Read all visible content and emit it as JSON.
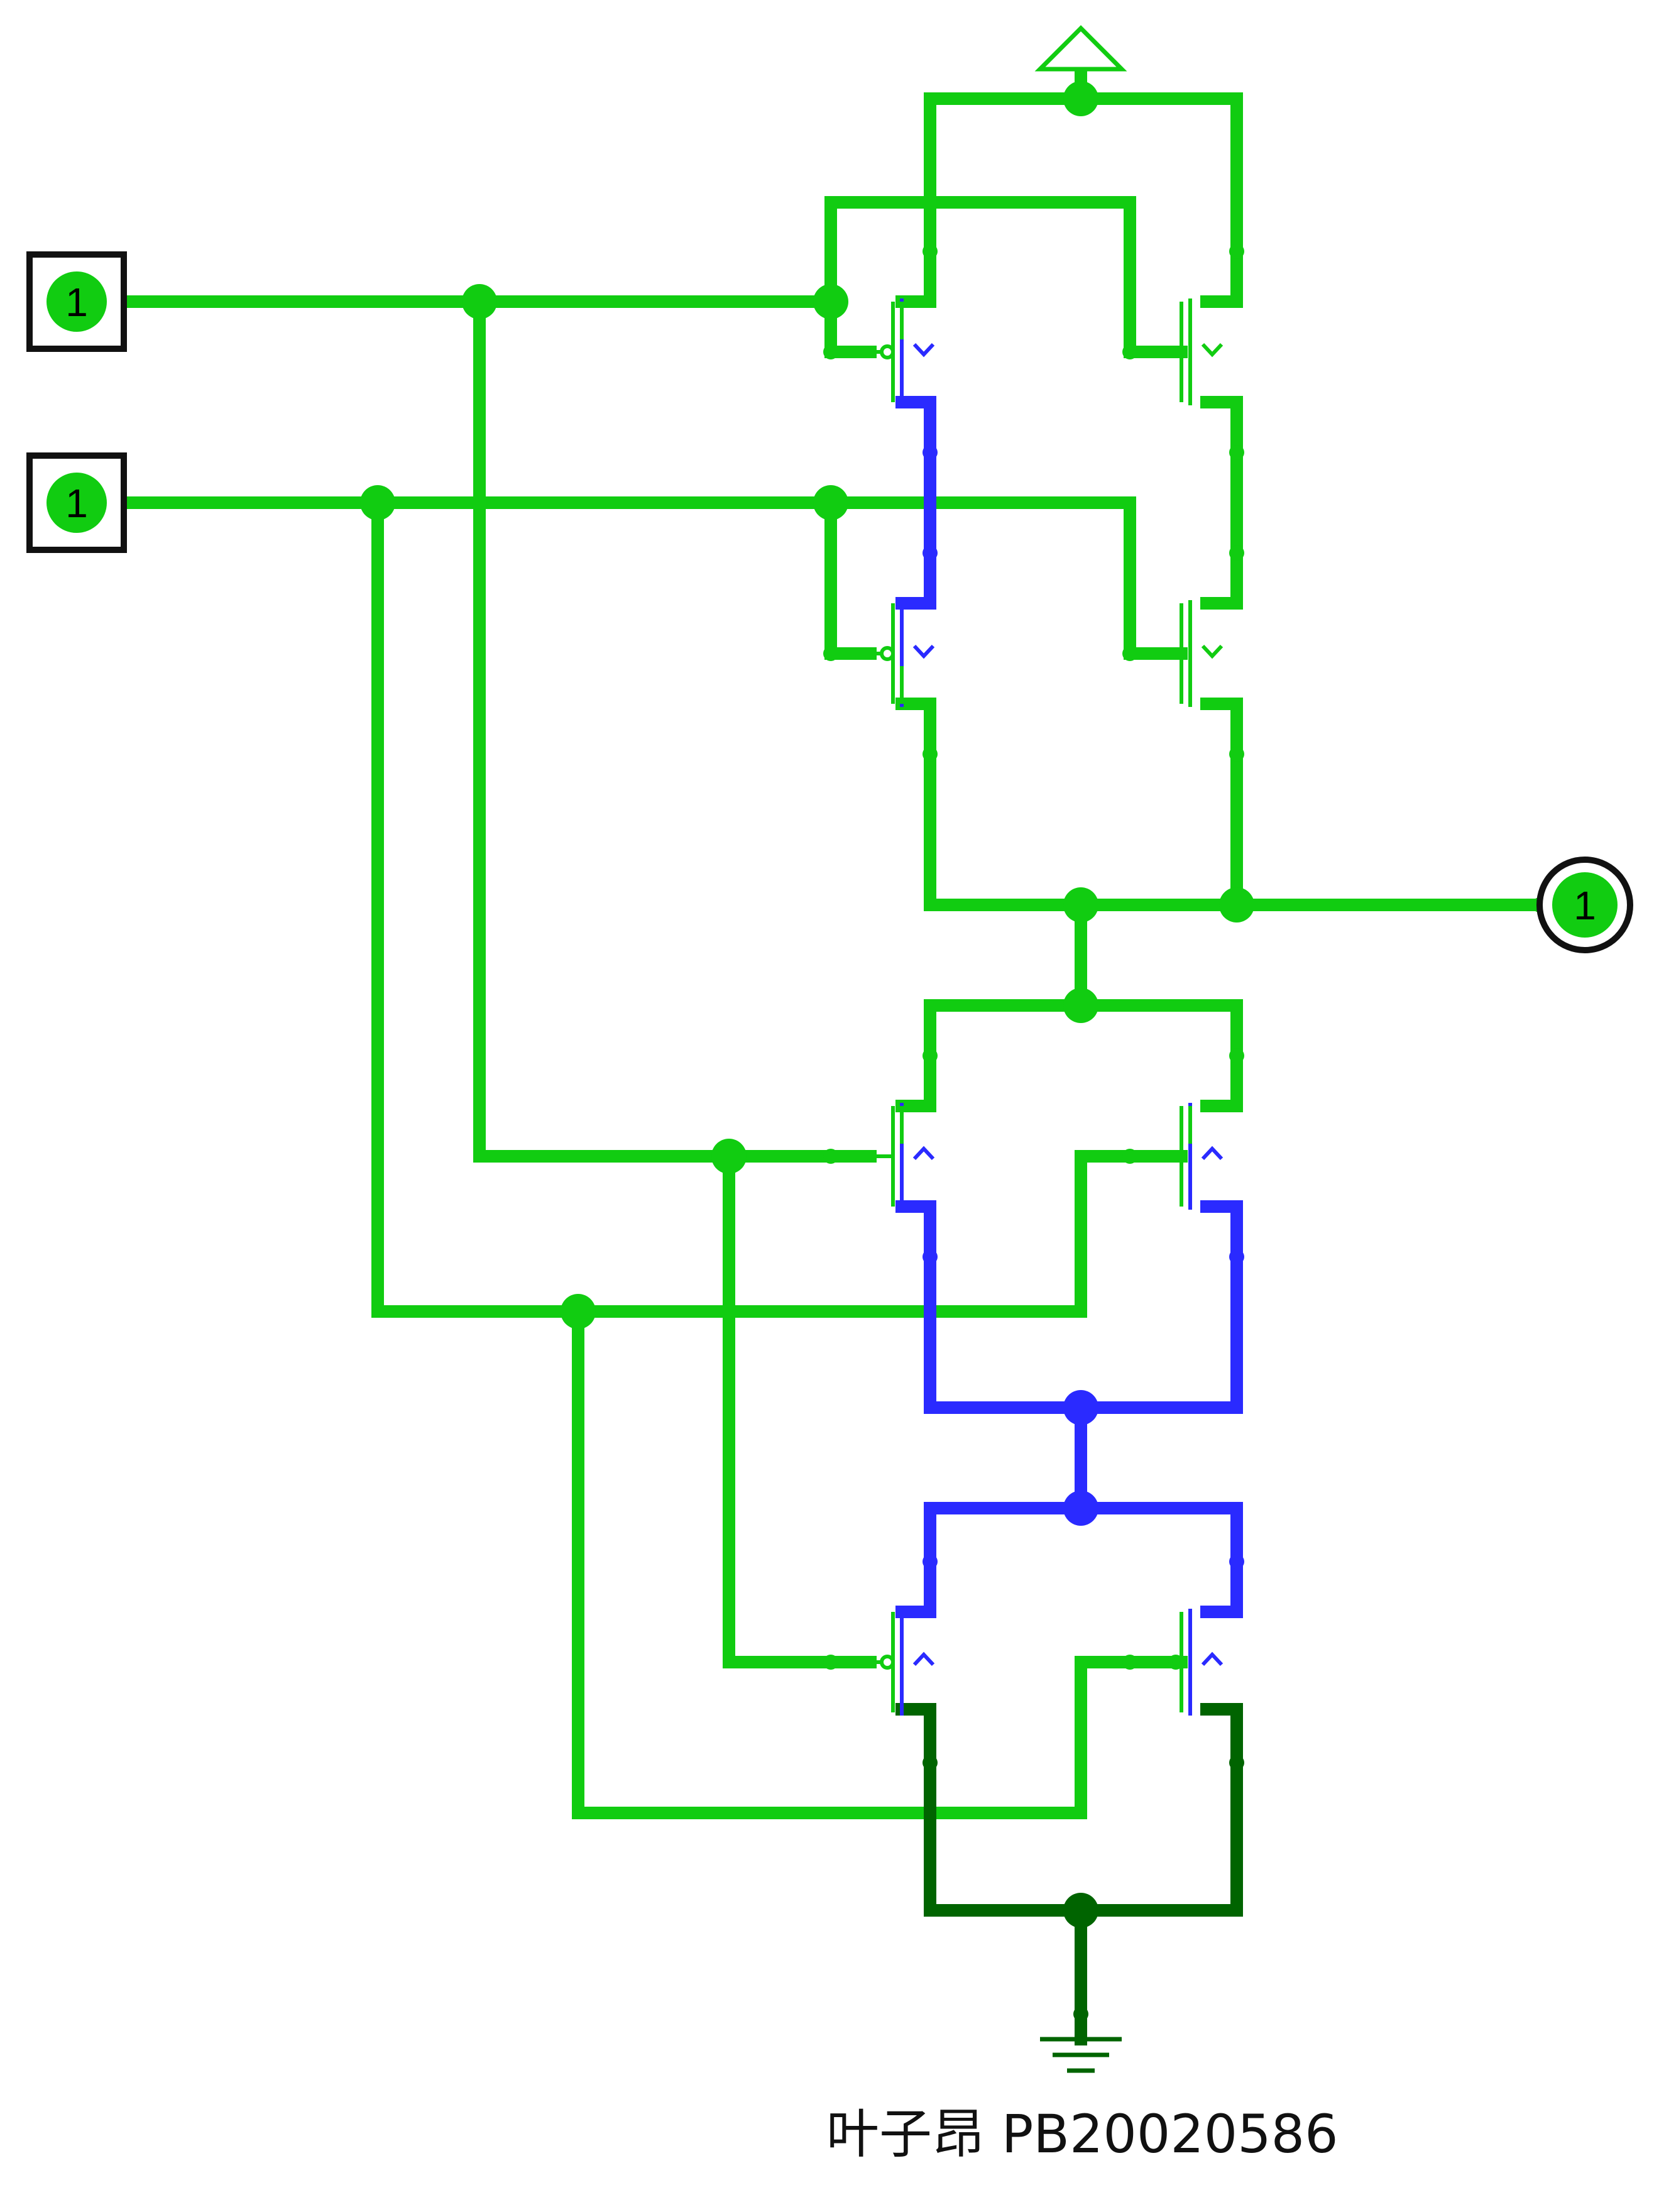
{
  "inputs": [
    {
      "label": "1"
    },
    {
      "label": "1"
    }
  ],
  "output": {
    "label": "1"
  },
  "author_label": "叶子昂 PB20020586",
  "colors": {
    "logic_high": "#11cc11",
    "logic_low": "#006400",
    "floating": "#2a2aff",
    "pin_border": "#111111"
  },
  "symbols": [
    "power-supply-icon",
    "ground-icon"
  ]
}
